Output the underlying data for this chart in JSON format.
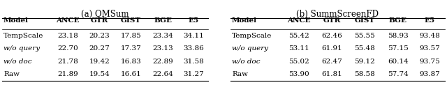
{
  "title_a": "(a) QMSum",
  "title_b": "(b) SummScreenFD",
  "columns": [
    "Model",
    "ANCE",
    "GTR",
    "GIST",
    "BGE",
    "E5"
  ],
  "table_a": [
    [
      "TempScale",
      "23.18",
      "20.23",
      "17.85",
      "23.34",
      "34.11"
    ],
    [
      "w/o query",
      "22.70",
      "20.27",
      "17.37",
      "23.13",
      "33.86"
    ],
    [
      "w/o doc",
      "21.78",
      "19.42",
      "16.83",
      "22.89",
      "31.58"
    ],
    [
      "Raw",
      "21.89",
      "19.54",
      "16.61",
      "22.64",
      "31.27"
    ]
  ],
  "table_b": [
    [
      "TempScale",
      "55.42",
      "62.46",
      "55.55",
      "58.93",
      "93.48"
    ],
    [
      "w/o query",
      "53.11",
      "61.91",
      "55.48",
      "57.15",
      "93.57"
    ],
    [
      "w/o doc",
      "55.02",
      "62.47",
      "59.12",
      "60.14",
      "93.75"
    ],
    [
      "Raw",
      "53.90",
      "61.81",
      "58.58",
      "57.74",
      "93.87"
    ]
  ],
  "italic_rows": [
    1,
    2
  ],
  "bg_color": "#ffffff",
  "fontsize": 7.5,
  "title_fontsize": 8.5,
  "line_color": "#000000"
}
